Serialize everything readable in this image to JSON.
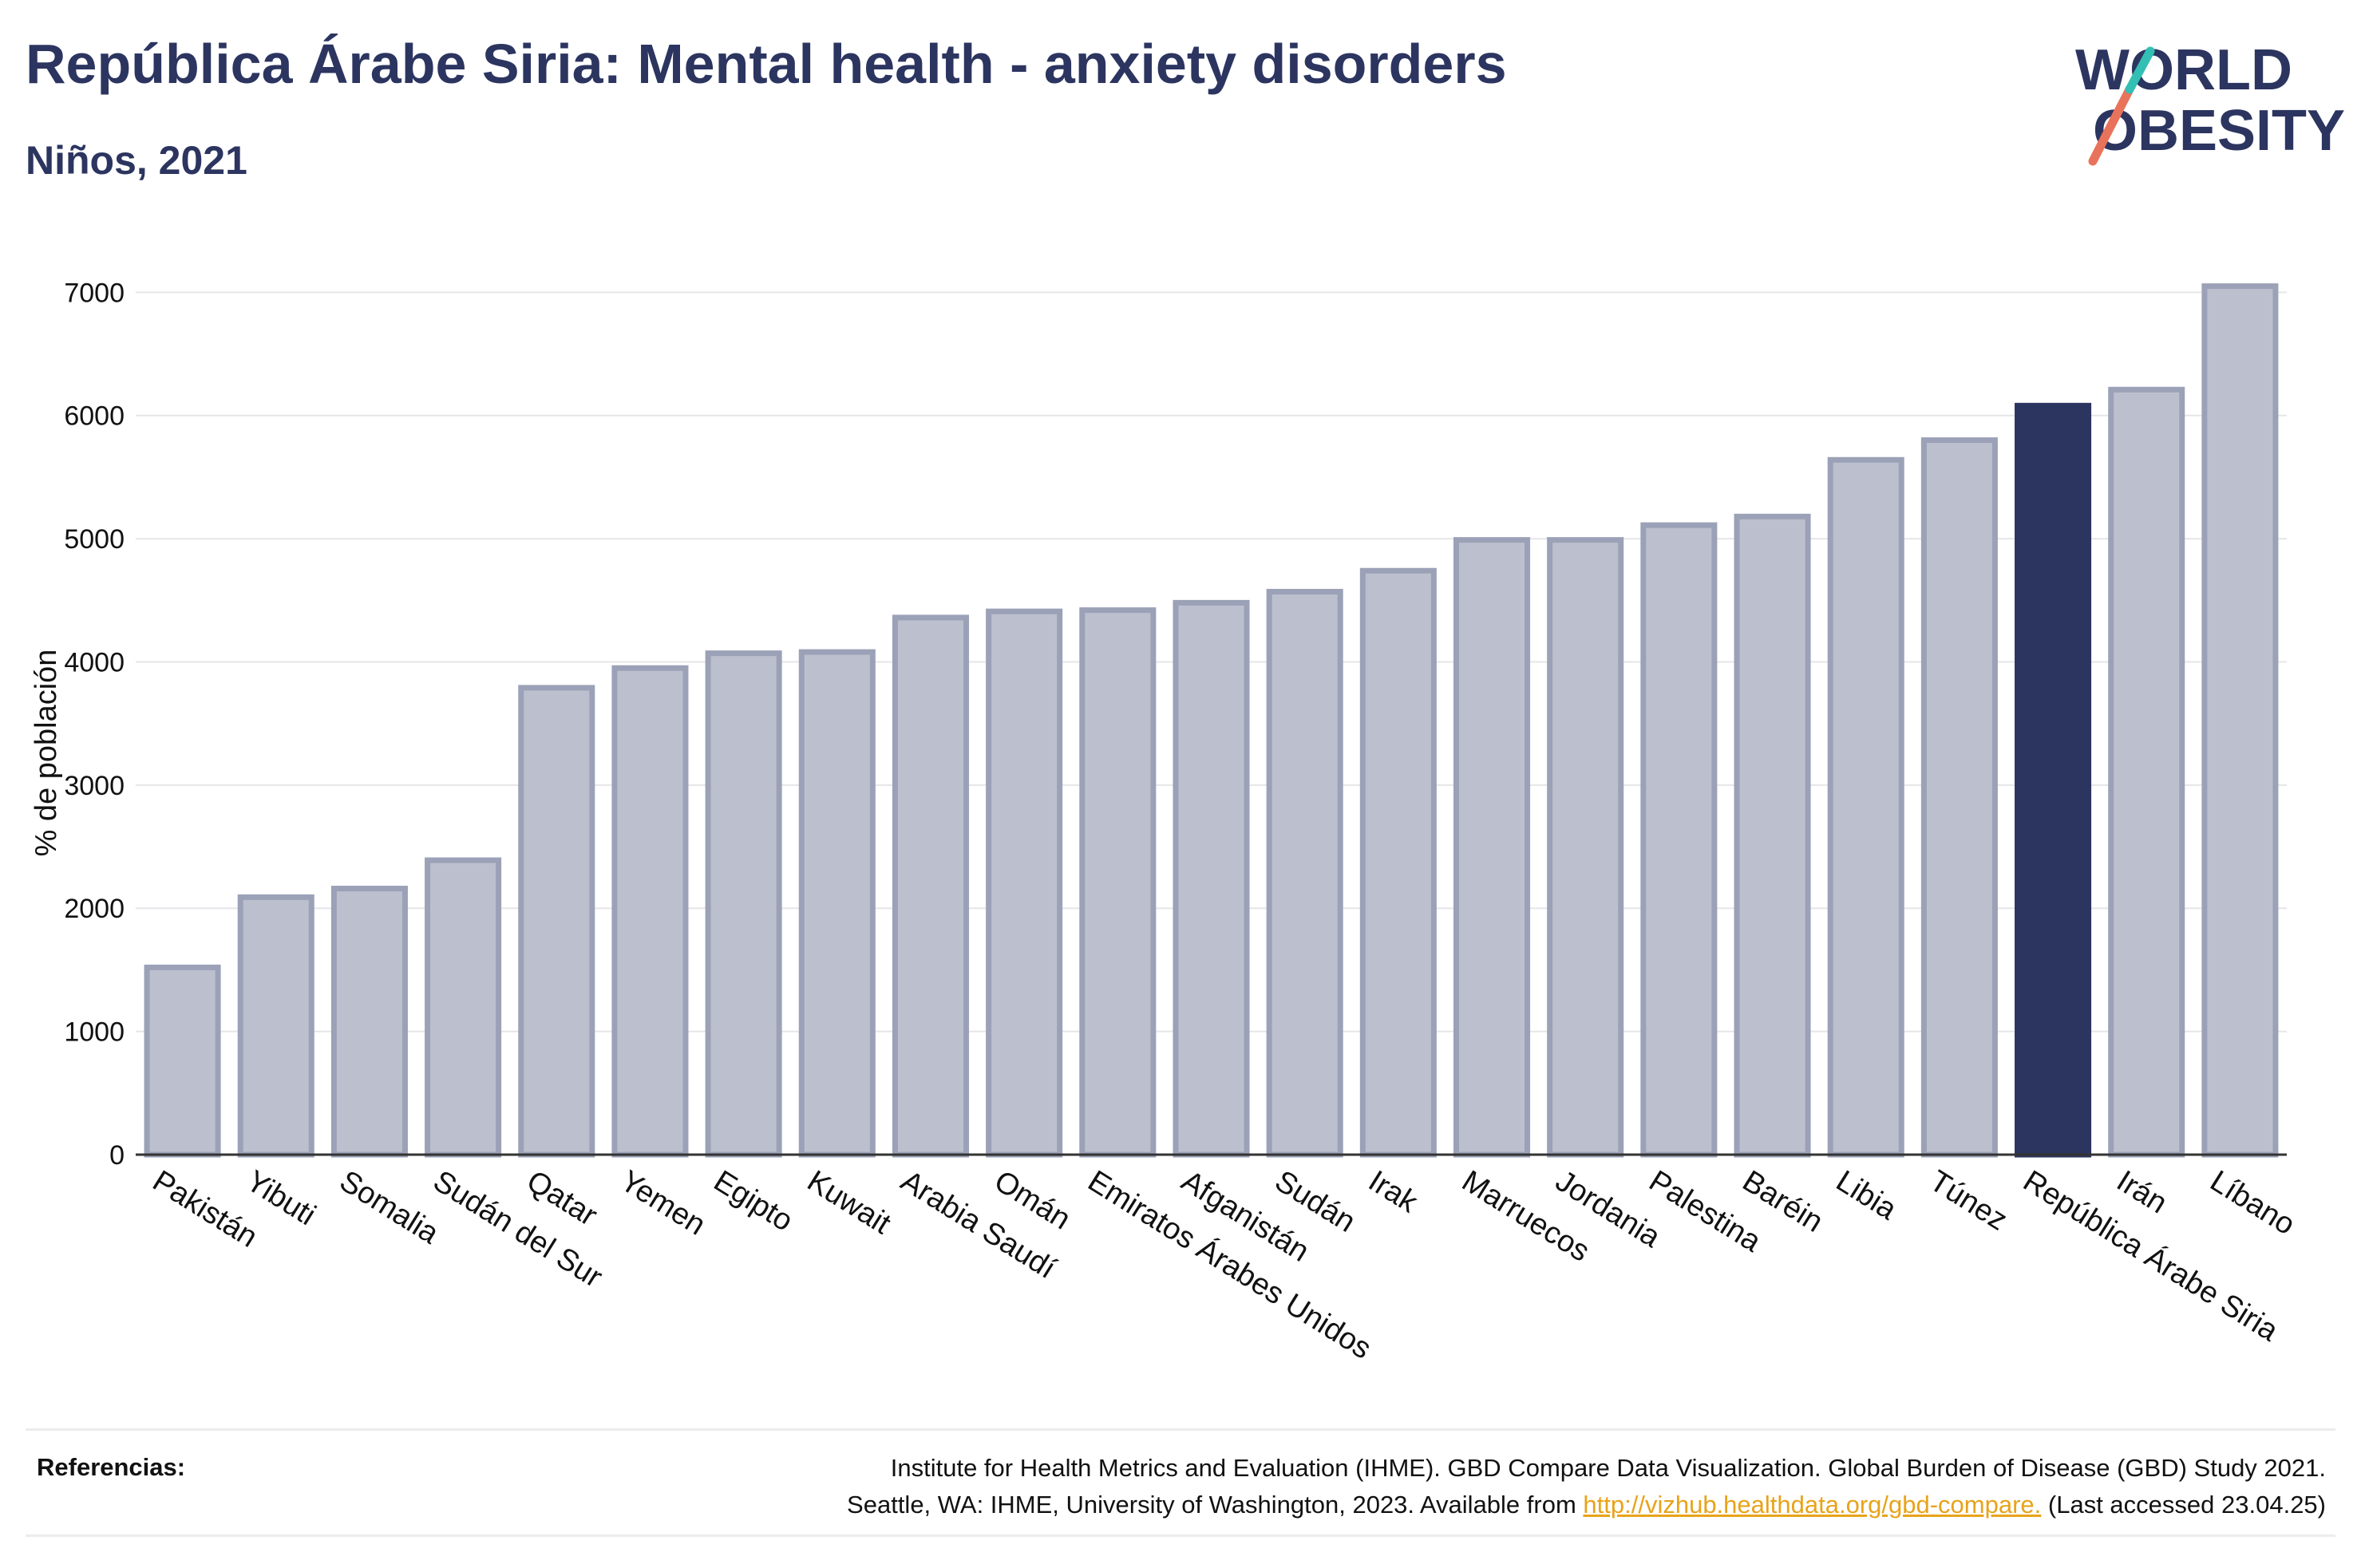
{
  "header": {
    "title": "República Árabe Siria: Mental health - anxiety disorders",
    "subtitle": "Niños, 2021"
  },
  "logo": {
    "line1": "WORLD",
    "line2": "OBESITY",
    "text_color": "#2c3560",
    "slash_colors": [
      "#e8735a",
      "#33bfb3"
    ]
  },
  "chart_data": {
    "type": "bar",
    "title": "República Árabe Siria: Mental health - anxiety disorders",
    "subtitle": "Niños, 2021",
    "ylabel": "% de población",
    "xlabel": "",
    "ylim": [
      0,
      7300
    ],
    "yticks": [
      0,
      1000,
      2000,
      3000,
      4000,
      5000,
      6000,
      7000
    ],
    "grid": true,
    "highlight": "República Árabe Siria",
    "colors": {
      "bar": "#bcc0ce",
      "bar_border": "#9ba1b7",
      "highlight": "#2c3560"
    },
    "categories": [
      "Pakistán",
      "Yibuti",
      "Somalia",
      "Sudán del Sur",
      "Qatar",
      "Yemen",
      "Egipto",
      "Kuwait",
      "Arabia Saudí",
      "Omán",
      "Emiratos Árabes Unidos",
      "Afganistán",
      "Sudán",
      "Irak",
      "Marruecos",
      "Jordania",
      "Palestina",
      "Baréin",
      "Libia",
      "Túnez",
      "República Árabe Siria",
      "Irán",
      "Líbano"
    ],
    "values": [
      1520,
      2090,
      2160,
      2390,
      3790,
      3950,
      4070,
      4080,
      4360,
      4410,
      4420,
      4480,
      4570,
      4740,
      4990,
      4990,
      5110,
      5180,
      5640,
      5800,
      6080,
      6210,
      7050
    ]
  },
  "references": {
    "label": "Referencias:",
    "line1": "Institute for Health Metrics and Evaluation (IHME). GBD Compare Data Visualization. Global Burden of Disease (GBD) Study 2021.",
    "line2_before": "Seattle, WA: IHME, University of Washington, 2023. Available from ",
    "link": "http://vizhub.healthdata.org/gbd-compare.",
    "line2_after": " (Last accessed 23.04.25)"
  }
}
